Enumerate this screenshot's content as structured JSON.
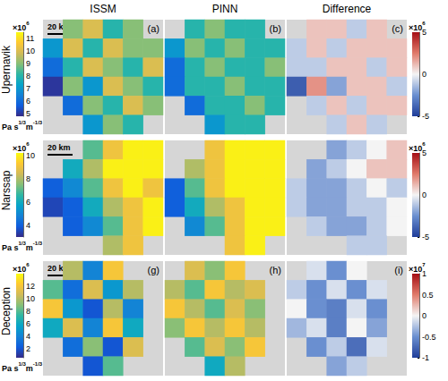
{
  "chart_data": {
    "type": "heatmap",
    "columns": [
      "ISSM",
      "PINN",
      "Difference"
    ],
    "scale_bar": "20 km",
    "rows": [
      {
        "name": "Upernavik",
        "colorbar": {
          "lim": [
            4.8,
            11.5
          ],
          "ticks": [
            5,
            6,
            7,
            8,
            9,
            10,
            11
          ],
          "multiplier": {
            "base": "×10",
            "exponent": "6"
          },
          "unit": {
            "base": [
              "Pa s",
              "m"
            ],
            "exponents": [
              "1/3",
              "-1/3"
            ]
          }
        },
        "diff_colorbar": {
          "lim": [
            -5,
            5
          ],
          "ticks": [
            -5,
            0,
            5
          ],
          "multiplier": {
            "base": "×10",
            "exponent": "6"
          }
        },
        "panels": [
          {
            "label": "(a)",
            "cells": [
              [
                null,
                9,
                10,
                8,
                9,
                null
              ],
              [
                7,
                10,
                8,
                10,
                9,
                9
              ],
              [
                6,
                8,
                10,
                9,
                8,
                10
              ],
              [
                5,
                9,
                7,
                10,
                9,
                8
              ],
              [
                null,
                6,
                9,
                8,
                10,
                9
              ],
              [
                null,
                null,
                7,
                9,
                8,
                null
              ]
            ]
          },
          {
            "label": "(b)",
            "cells": [
              [
                null,
                8,
                9,
                8,
                8,
                null
              ],
              [
                7,
                9,
                8,
                9,
                8,
                8
              ],
              [
                6,
                8,
                9,
                8,
                8,
                9
              ],
              [
                6,
                8,
                8,
                9,
                8,
                8
              ],
              [
                null,
                6,
                8,
                8,
                9,
                8
              ],
              [
                null,
                null,
                7,
                8,
                8,
                null
              ]
            ]
          },
          {
            "label": "(c)",
            "cells": [
              [
                null,
                1,
                1,
                -1,
                1,
                null
              ],
              [
                -1,
                1,
                -1,
                1,
                1,
                1
              ],
              [
                -1,
                -1,
                1,
                1,
                -1,
                1
              ],
              [
                -4,
                2,
                -2,
                1,
                1,
                -1
              ],
              [
                null,
                -1,
                1,
                -1,
                1,
                1
              ],
              [
                null,
                null,
                -1,
                1,
                -1,
                null
              ]
            ]
          }
        ]
      },
      {
        "name": "Narssap",
        "colorbar": {
          "lim": [
            3,
            10.2
          ],
          "ticks": [
            4,
            6,
            8,
            10
          ],
          "multiplier": {
            "base": "×10",
            "exponent": "6"
          },
          "unit": {
            "base": [
              "Pa s",
              "m"
            ],
            "exponents": [
              "1/3",
              "-1/3"
            ]
          }
        },
        "diff_colorbar": {
          "lim": [
            -5,
            5
          ],
          "ticks": [
            -5,
            0,
            5
          ],
          "multiplier": {
            "base": "×10",
            "exponent": "6"
          }
        },
        "panels": [
          {
            "label": "(d)",
            "cells": [
              [
                null,
                null,
                7,
                9,
                10,
                10
              ],
              [
                null,
                6,
                8,
                10,
                10,
                10
              ],
              [
                4,
                5,
                7,
                9,
                10,
                9
              ],
              [
                3.5,
                4,
                6,
                8,
                9,
                10
              ],
              [
                null,
                4,
                5,
                7,
                9,
                10
              ],
              [
                null,
                null,
                null,
                8,
                9,
                null
              ]
            ]
          },
          {
            "label": "(e)",
            "cells": [
              [
                null,
                null,
                9,
                10,
                10,
                10
              ],
              [
                null,
                8,
                9,
                10,
                10,
                10
              ],
              [
                4,
                7,
                9,
                10,
                10,
                10
              ],
              [
                4,
                6,
                8,
                9,
                10,
                10
              ],
              [
                null,
                5,
                7,
                9,
                10,
                10
              ],
              [
                null,
                null,
                null,
                9,
                10,
                null
              ]
            ]
          },
          {
            "label": "(f)",
            "cells": [
              [
                null,
                null,
                -2,
                -1,
                0,
                1
              ],
              [
                null,
                -2,
                -1,
                0,
                1,
                1
              ],
              [
                -1,
                -2,
                -2,
                -1,
                0,
                -1
              ],
              [
                -1,
                -2,
                -2,
                -1,
                -1,
                0
              ],
              [
                null,
                -1,
                -2,
                -2,
                -1,
                0
              ],
              [
                null,
                null,
                null,
                -1,
                -1,
                null
              ]
            ]
          }
        ]
      },
      {
        "name": "Deception",
        "colorbar": {
          "lim": [
            0.5,
            14
          ],
          "ticks": [
            2,
            4,
            6,
            8,
            10,
            12
          ],
          "multiplier": {
            "base": "×10",
            "exponent": "6"
          },
          "unit": {
            "base": [
              "Pa s",
              "m"
            ],
            "exponents": [
              "1/3",
              "-1/3"
            ]
          }
        },
        "diff_colorbar": {
          "lim": [
            -1,
            1
          ],
          "ticks": [
            -1,
            -0.5,
            0,
            0.5,
            1
          ],
          "multiplier": {
            "base": "×10",
            "exponent": "7"
          }
        },
        "panels": [
          {
            "label": "(g)",
            "cells": [
              [
                null,
                10,
                4,
                12,
                null,
                null
              ],
              [
                8,
                3,
                11,
                5,
                10,
                null
              ],
              [
                12,
                5,
                2,
                10,
                4,
                null
              ],
              [
                6,
                11,
                4,
                12,
                6,
                null
              ],
              [
                null,
                3,
                9,
                2,
                11,
                null
              ],
              [
                null,
                null,
                2,
                8,
                null,
                null
              ]
            ]
          },
          {
            "label": "(h)",
            "cells": [
              [
                null,
                11,
                9,
                12,
                null,
                null
              ],
              [
                10,
                8,
                12,
                10,
                11,
                null
              ],
              [
                12,
                10,
                8,
                11,
                9,
                null
              ],
              [
                9,
                12,
                10,
                12,
                10,
                null
              ],
              [
                null,
                8,
                11,
                9,
                12,
                null
              ],
              [
                null,
                null,
                6,
                10,
                null,
                null
              ]
            ]
          },
          {
            "label": "(i)",
            "cells": [
              [
                null,
                -0.1,
                -0.5,
                0,
                null,
                null
              ],
              [
                -0.2,
                -0.5,
                -0.1,
                -0.5,
                -0.1,
                null
              ],
              [
                0,
                -0.5,
                -0.6,
                -0.1,
                -0.5,
                null
              ],
              [
                -0.3,
                -0.1,
                -0.6,
                0,
                -0.4,
                null
              ],
              [
                null,
                -0.5,
                -0.2,
                -0.7,
                -0.1,
                null
              ],
              [
                null,
                null,
                -0.4,
                -0.2,
                null,
                null
              ]
            ]
          }
        ]
      }
    ]
  }
}
